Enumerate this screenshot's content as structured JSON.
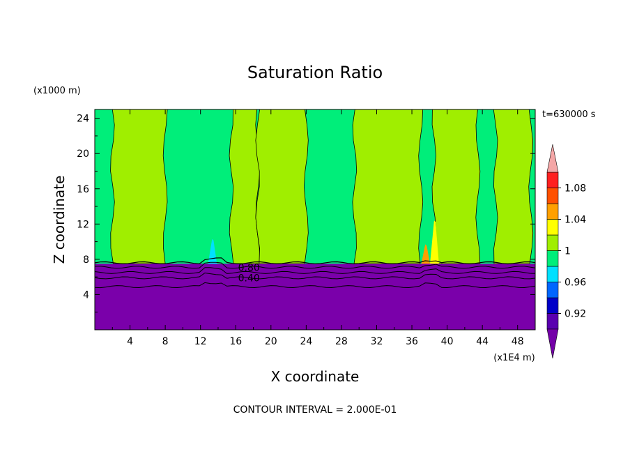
{
  "chart_data": {
    "type": "heatmap",
    "title": "Saturation Ratio",
    "xlabel": "X coordinate",
    "ylabel": "Z coordinate",
    "x_unit": "(x1E4 m)",
    "y_unit": "(x1000 m)",
    "time_label": "t=630000 s",
    "footer": "CONTOUR INTERVAL = 2.000E-01",
    "xlim": [
      0,
      50
    ],
    "ylim": [
      0,
      25
    ],
    "x_ticks": [
      "4",
      "8",
      "12",
      "16",
      "20",
      "24",
      "28",
      "32",
      "36",
      "40",
      "44",
      "48"
    ],
    "y_ticks": [
      "4",
      "8",
      "12",
      "16",
      "20",
      "24"
    ],
    "contour_labels": [
      {
        "text": "0.80",
        "x": 17.5,
        "z": 7.1
      },
      {
        "text": "0.40",
        "x": 17.5,
        "z": 5.9
      }
    ],
    "colorbar": {
      "tick_labels": [
        "1.08",
        "1.04",
        "1",
        "0.96",
        "0.92"
      ],
      "levels": [
        {
          "lo": "min",
          "hi": 0.9,
          "color": "#7400a8"
        },
        {
          "lo": 0.9,
          "hi": 0.92,
          "color": "#5a00b0"
        },
        {
          "lo": 0.92,
          "hi": 0.94,
          "color": "#0000c8"
        },
        {
          "lo": 0.94,
          "hi": 0.96,
          "color": "#0066ff"
        },
        {
          "lo": 0.96,
          "hi": 0.98,
          "color": "#00e0ff"
        },
        {
          "lo": 0.98,
          "hi": 1.0,
          "color": "#00ee7a"
        },
        {
          "lo": 1.0,
          "hi": 1.02,
          "color": "#a0ee00"
        },
        {
          "lo": 1.02,
          "hi": 1.04,
          "color": "#ffff00"
        },
        {
          "lo": 1.04,
          "hi": 1.06,
          "color": "#ffa000"
        },
        {
          "lo": 1.06,
          "hi": 1.08,
          "color": "#ff5000"
        },
        {
          "lo": 1.08,
          "hi": 1.1,
          "color": "#ff2020"
        },
        {
          "lo": 1.1,
          "hi": "max",
          "color": "#f4a6a6"
        }
      ]
    },
    "field": {
      "lower_layer_top_z": 7.5,
      "lower_layer_value": "< 0.90",
      "upper_background_value": "0.98-1.00",
      "supersaturated_columns_x": [
        [
          2.0,
          8.0
        ],
        [
          15.5,
          18.5
        ],
        [
          18.5,
          24.0
        ],
        [
          29.5,
          37.0
        ],
        [
          38.5,
          43.5
        ],
        [
          45.5,
          49.5
        ]
      ],
      "peaks": [
        {
          "x": 13.4,
          "z": 10.3,
          "value": "0.96-0.98"
        },
        {
          "x": 37.6,
          "z": 9.7,
          "value": "1.04-1.06"
        },
        {
          "x": 38.6,
          "z": 12.4,
          "value": "1.02-1.04"
        }
      ]
    },
    "colors": {
      "under": "#7400a8",
      "dry_layer": "#7a00aa",
      "near_saturation": "#00ee7a",
      "supersaturated": "#a0ee00",
      "contour": "#000000"
    }
  }
}
